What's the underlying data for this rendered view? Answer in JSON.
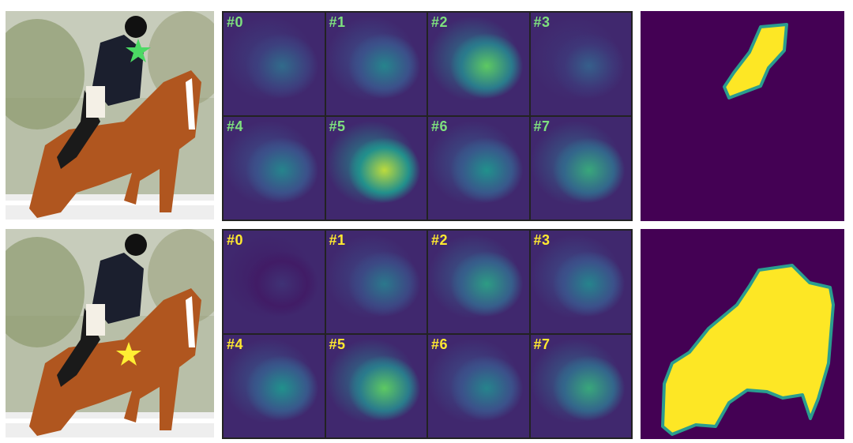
{
  "rows": [
    {
      "star_color": "#4cd964",
      "label_color": "#7ee07e",
      "labels": [
        "#0",
        "#1",
        "#2",
        "#3",
        "#4",
        "#5",
        "#6",
        "#7"
      ],
      "intensity": [
        0.35,
        0.45,
        0.75,
        0.3,
        0.45,
        0.9,
        0.5,
        0.6
      ]
    },
    {
      "star_color": "#ffee33",
      "label_color": "#ffe930",
      "labels": [
        "#0",
        "#1",
        "#2",
        "#3",
        "#4",
        "#5",
        "#6",
        "#7"
      ],
      "intensity": [
        0.15,
        0.4,
        0.55,
        0.45,
        0.5,
        0.75,
        0.45,
        0.6
      ]
    }
  ],
  "colors": {
    "viridis_dark": "#440154",
    "viridis_mid": "#21918c",
    "viridis_bright": "#fde725"
  }
}
